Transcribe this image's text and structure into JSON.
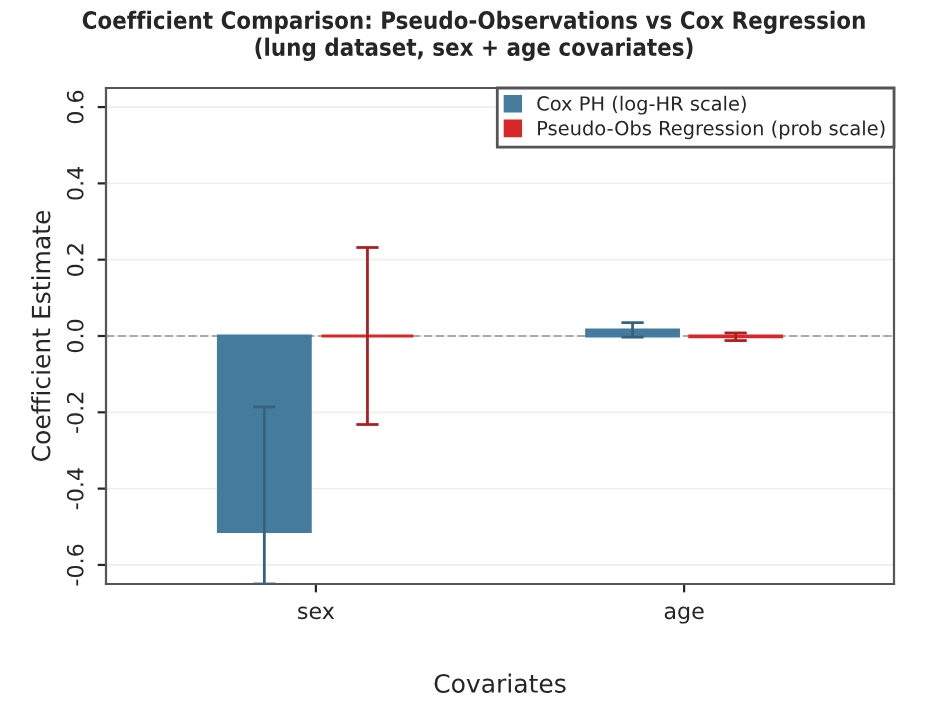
{
  "chart_data": {
    "type": "bar",
    "title": "Coefficient Comparison: Pseudo-Observations vs Cox Regression\n(lung dataset, sex + age covariates)",
    "xlabel": "Covariates",
    "ylabel": "Coefficient Estimate",
    "categories": [
      "sex",
      "age"
    ],
    "series": [
      {
        "name": "Cox PH (log-HR scale)",
        "color": "#457b9d",
        "values": [
          -0.513,
          0.016
        ],
        "errors": [
          [
            -0.65,
            -0.186
          ],
          0.019
        ]
      },
      {
        "name": "Pseudo-Obs Regression (prob scale)",
        "color": "#d62828",
        "values": [
          0.0,
          -0.002
        ],
        "errors": [
          0.232,
          0.01
        ]
      }
    ],
    "ylim": [
      -0.65,
      0.65
    ],
    "yticks": [
      -0.6,
      -0.4,
      -0.2,
      {
        "value": 0,
        "label": "0.0"
      },
      0.2,
      0.4,
      0.6
    ],
    "ref_lines": [
      {
        "axis": "y",
        "value": 0,
        "color": "#aaaaaa",
        "line_style": "dashed"
      }
    ],
    "grid": "y",
    "legend": "top right"
  }
}
